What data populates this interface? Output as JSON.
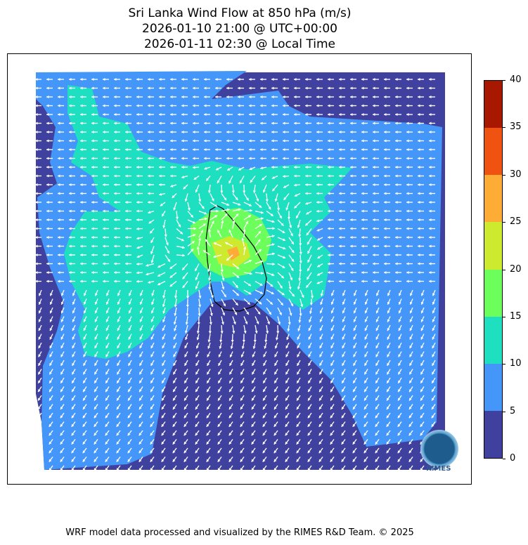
{
  "title": {
    "line1": "Sri Lanka Wind Flow at 850 hPa (m/s)",
    "line2": "2026-01-10 21:00 @ UTC+00:00",
    "line3": "2026-01-11 02:30 @ Local Time"
  },
  "colorbar": {
    "ticks": [
      "0",
      "5",
      "10",
      "15",
      "20",
      "25",
      "30",
      "35",
      "40"
    ],
    "colors": [
      "#40409e",
      "#4496f8",
      "#1edfc0",
      "#6cfe5a",
      "#cdea2e",
      "#fdad35",
      "#ef5211",
      "#a81800"
    ]
  },
  "logo": {
    "text": "RIMES"
  },
  "footer": "WRF model data processed and visualized by the RIMES R&D Team. © 2025"
}
